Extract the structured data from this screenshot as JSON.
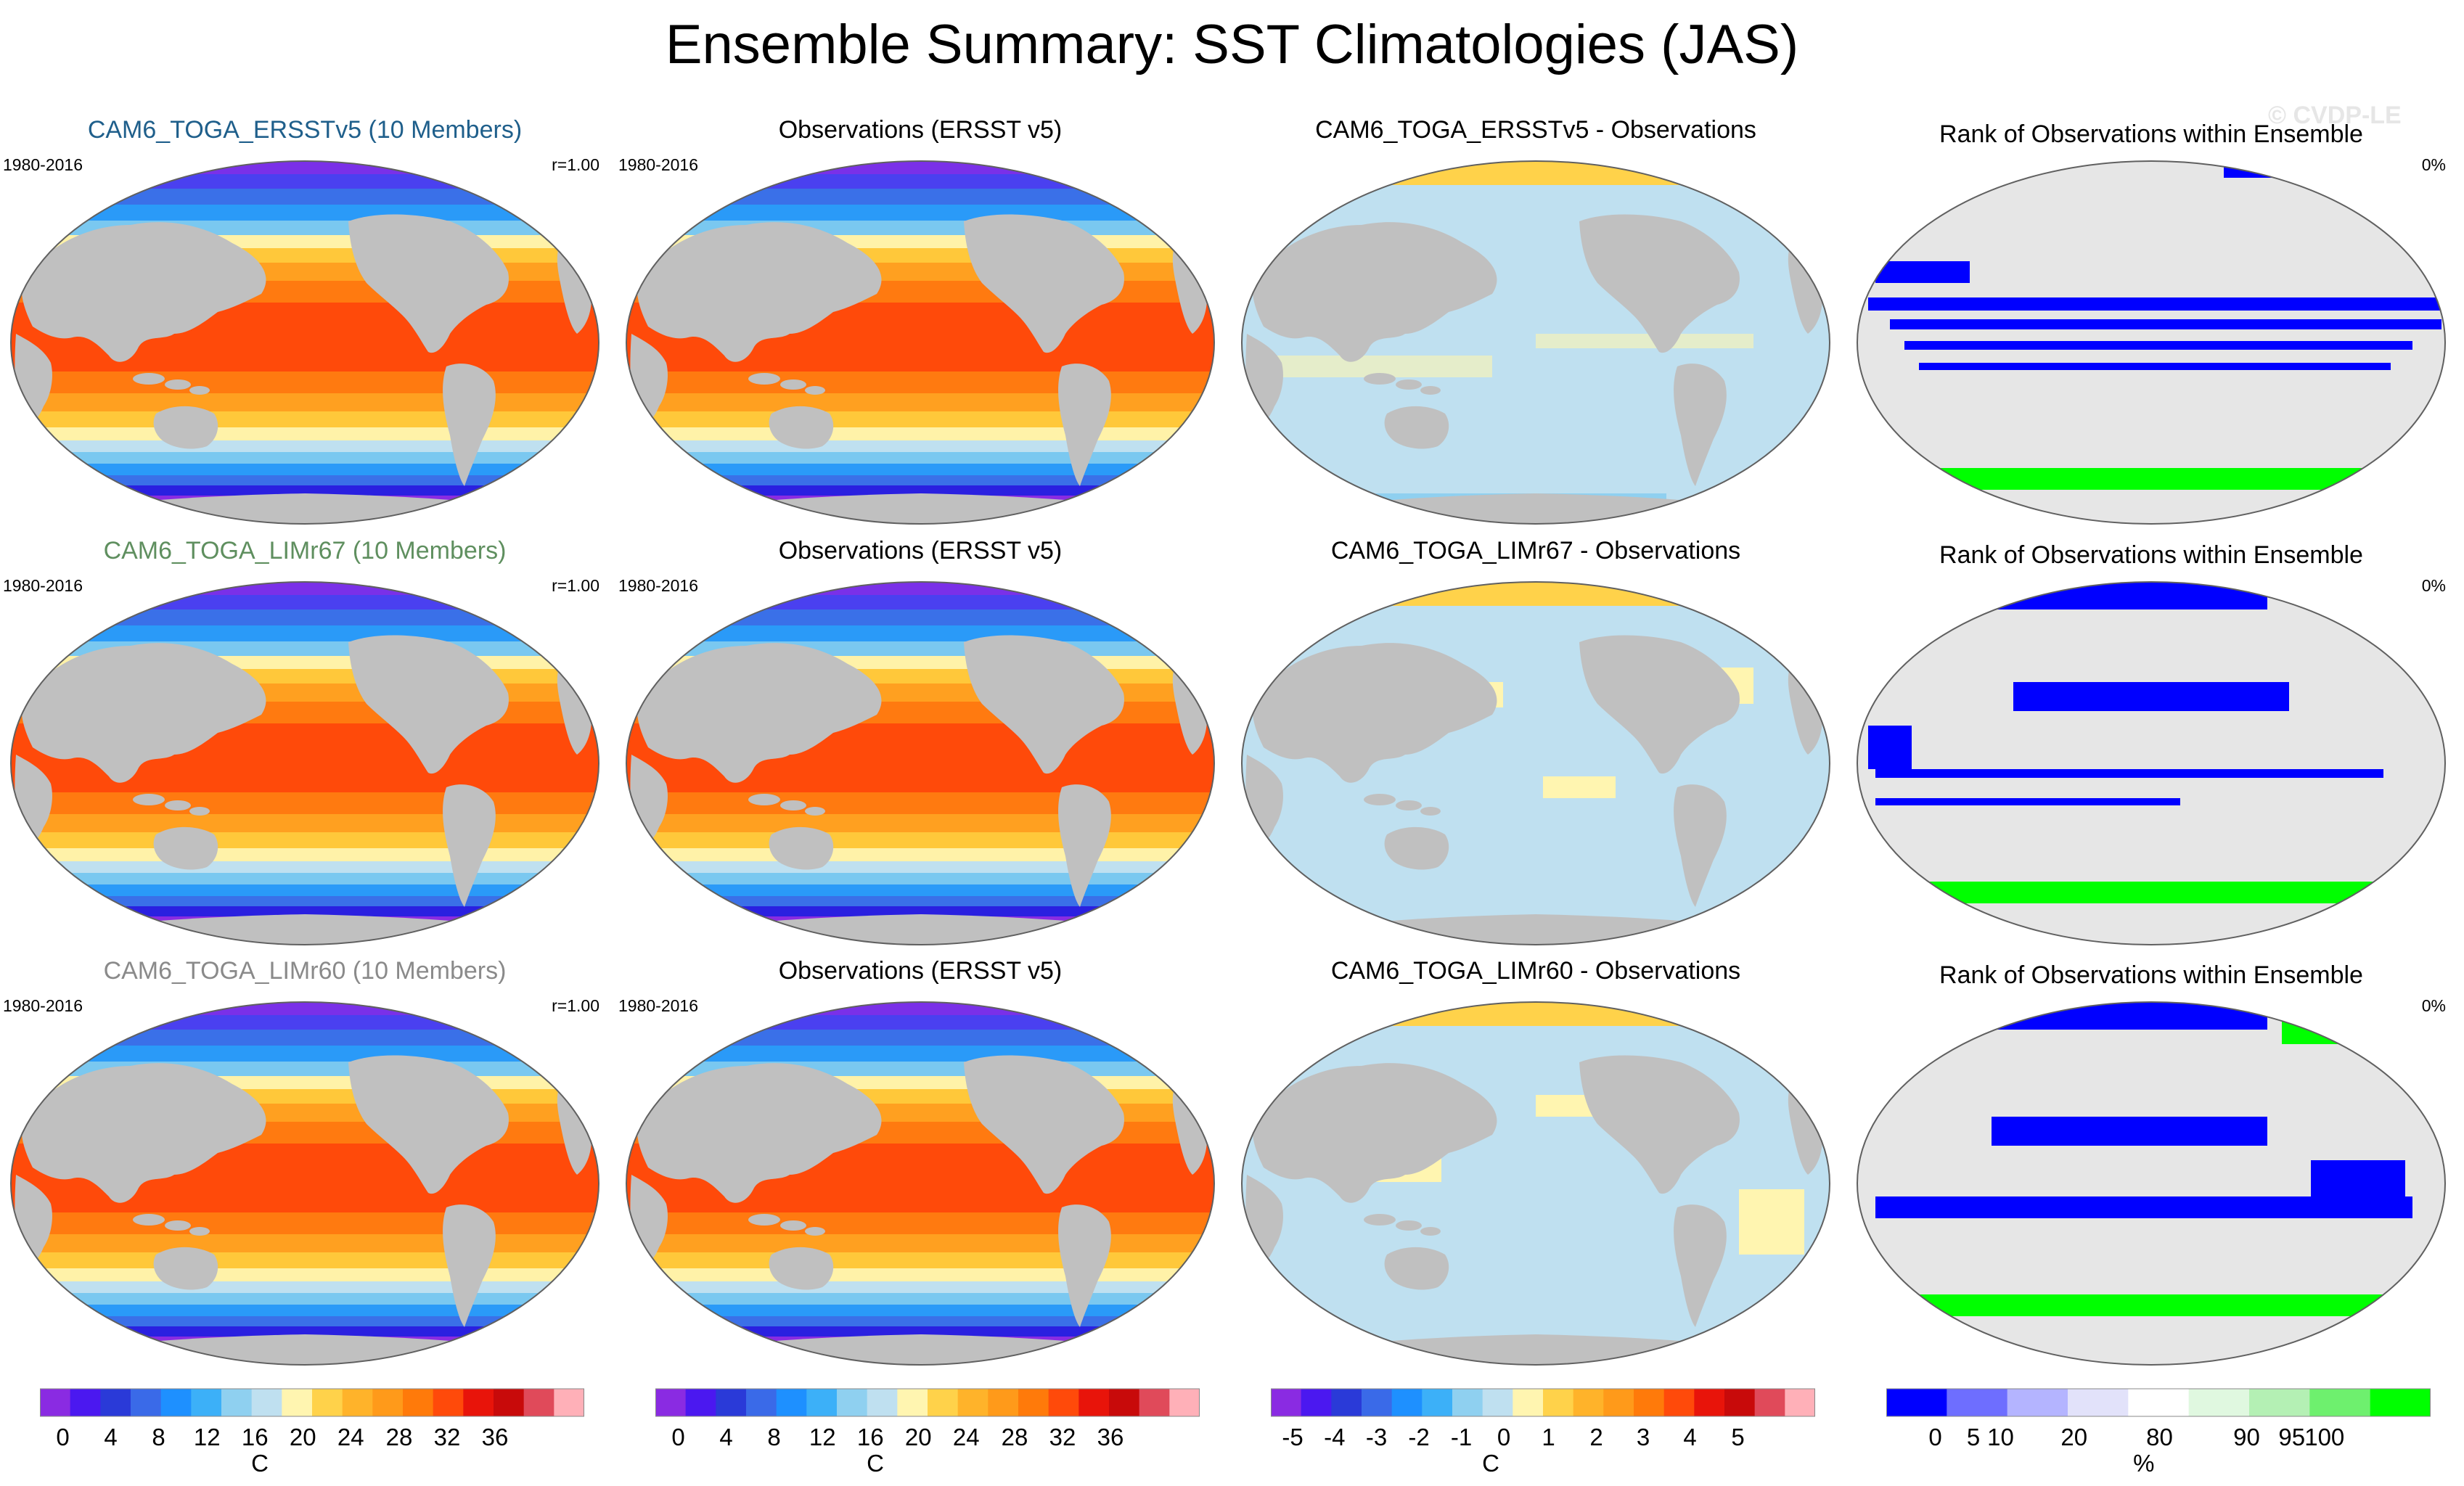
{
  "header": {
    "title": "Ensemble Summary: SST Climatologies (JAS)",
    "watermark": "© CVDP-LE"
  },
  "rows": [
    {
      "model": {
        "title": "CAM6_TOGA_ERSSTv5 (10 Members)",
        "color": "#1f5f8b",
        "period": "1980-2016",
        "r": "r=1.00"
      },
      "obs": {
        "title": "Observations (ERSST v5)",
        "period": "1980-2016"
      },
      "diff": {
        "title": "CAM6_TOGA_ERSSTv5 - Observations"
      },
      "rank": {
        "title": "Rank of Observations within Ensemble",
        "pct": "0%"
      }
    },
    {
      "model": {
        "title": "CAM6_TOGA_LIMr67 (10 Members)",
        "color": "#5f8f5f",
        "period": "1980-2016",
        "r": "r=1.00"
      },
      "obs": {
        "title": "Observations (ERSST v5)",
        "period": "1980-2016"
      },
      "diff": {
        "title": "CAM6_TOGA_LIMr67 - Observations"
      },
      "rank": {
        "title": "Rank of Observations within Ensemble",
        "pct": "0%"
      }
    },
    {
      "model": {
        "title": "CAM6_TOGA_LIMr60 (10 Members)",
        "color": "#8a8a8a",
        "period": "1980-2016",
        "r": "r=1.00"
      },
      "obs": {
        "title": "Observations (ERSST v5)",
        "period": "1980-2016"
      },
      "diff": {
        "title": "CAM6_TOGA_LIMr60 - Observations"
      },
      "rank": {
        "title": "Rank of Observations within Ensemble",
        "pct": "0%"
      }
    }
  ],
  "colorbars": [
    {
      "unit": "C",
      "labels": [
        "0",
        "4",
        "8",
        "12",
        "16",
        "20",
        "24",
        "28",
        "32",
        "36"
      ],
      "colors": [
        "#8a2be2",
        "#4b18f0",
        "#2a3ad8",
        "#3a6ae8",
        "#1e90ff",
        "#3cb0f8",
        "#8fd0f0",
        "#bfe0f0",
        "#fff5b0",
        "#ffd24a",
        "#ffb32a",
        "#ff9a1a",
        "#ff7a0a",
        "#ff4a0a",
        "#e8140a",
        "#c80a0a",
        "#e04a5a",
        "#ffb0b8"
      ]
    },
    {
      "unit": "C",
      "labels": [
        "0",
        "4",
        "8",
        "12",
        "16",
        "20",
        "24",
        "28",
        "32",
        "36"
      ],
      "colors": [
        "#8a2be2",
        "#4b18f0",
        "#2a3ad8",
        "#3a6ae8",
        "#1e90ff",
        "#3cb0f8",
        "#8fd0f0",
        "#bfe0f0",
        "#fff5b0",
        "#ffd24a",
        "#ffb32a",
        "#ff9a1a",
        "#ff7a0a",
        "#ff4a0a",
        "#e8140a",
        "#c80a0a",
        "#e04a5a",
        "#ffb0b8"
      ]
    },
    {
      "unit": "C",
      "labels": [
        "-5",
        "-4",
        "-3",
        "-2",
        "-1",
        "0",
        "1",
        "2",
        "3",
        "4",
        "5"
      ],
      "colors": [
        "#8a2be2",
        "#4b18f0",
        "#2a3ad8",
        "#3a6ae8",
        "#1e90ff",
        "#3cb0f8",
        "#8fd0f0",
        "#bfe0f0",
        "#fff5b0",
        "#ffd24a",
        "#ffb32a",
        "#ff9a1a",
        "#ff7a0a",
        "#ff4a0a",
        "#e8140a",
        "#c80a0a",
        "#e04a5a",
        "#ffb0b8"
      ]
    },
    {
      "unit": "%",
      "labels": [
        "0",
        "5",
        "10",
        "20",
        "80",
        "90",
        "95",
        "100"
      ],
      "colors": [
        "#0000ff",
        "#6e6eff",
        "#b4b4ff",
        "#e2e2fa",
        "#ffffff",
        "#e0f8e0",
        "#b4f0b4",
        "#6ef06e",
        "#00ff00"
      ]
    }
  ]
}
